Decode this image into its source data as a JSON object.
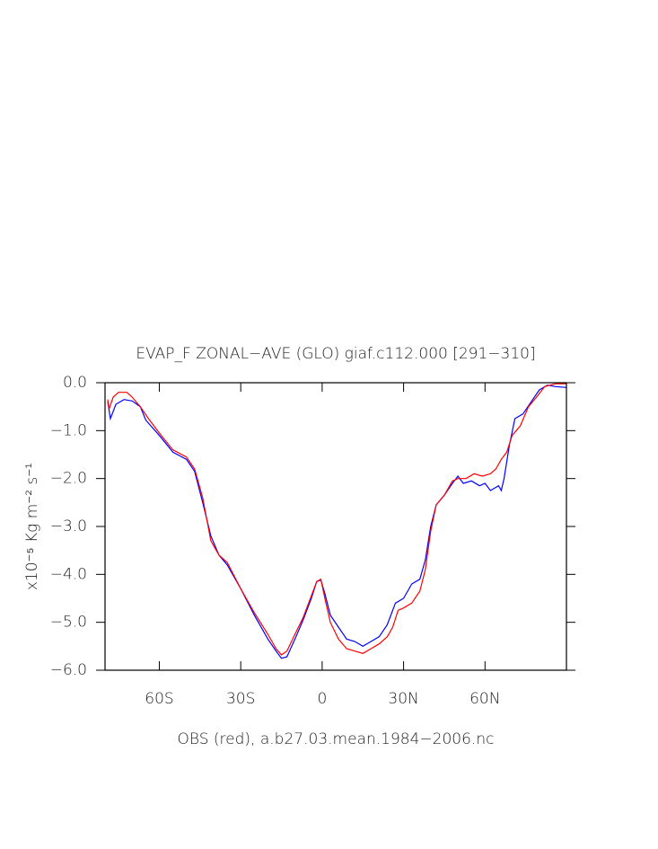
{
  "chart_data": {
    "type": "line",
    "title": "EVAP_F ZONAL−AVE (GLO) giaf.c112.000 [291−310]",
    "ylabel": "x10⁻⁵ Kg m⁻² s⁻¹",
    "footer": "OBS (red), a.b27.03.mean.1984−2006.nc",
    "xlim": [
      -80,
      90
    ],
    "xticks": [
      {
        "value": -60,
        "label": "60S"
      },
      {
        "value": -30,
        "label": "30S"
      },
      0,
      {
        "value": 30,
        "label": "30N"
      },
      {
        "value": 60,
        "label": "60N"
      }
    ],
    "ylim": [
      -6,
      0
    ],
    "yticks": [
      {
        "value": 0,
        "label": "0.0"
      },
      {
        "value": -1,
        "label": "−1.0"
      },
      {
        "value": -2,
        "label": "−2.0"
      },
      {
        "value": -3,
        "label": "−3.0"
      },
      {
        "value": -4,
        "label": "−4.0"
      },
      {
        "value": -5,
        "label": "−5.0"
      },
      {
        "value": -6,
        "label": "−6.0"
      }
    ],
    "series": [
      {
        "color": "#0000ff",
        "x": [
          -79,
          -78,
          -76,
          -73,
          -70,
          -67,
          -65,
          -60,
          -55,
          -50,
          -47,
          -44,
          -41,
          -38,
          -35,
          -30,
          -25,
          -20,
          -17,
          -15,
          -13,
          -10,
          -7,
          -4,
          -2,
          -0.5,
          1,
          3,
          6,
          9,
          12,
          15,
          18,
          21,
          24,
          27,
          30,
          33,
          36,
          38,
          40,
          42,
          45,
          48,
          50,
          52,
          55,
          58,
          60,
          62,
          65,
          66,
          67,
          69,
          71,
          74,
          77,
          80,
          83,
          86,
          90
        ],
        "values": [
          -0.4,
          -0.75,
          -0.45,
          -0.35,
          -0.38,
          -0.5,
          -0.78,
          -1.1,
          -1.45,
          -1.6,
          -1.85,
          -2.5,
          -3.2,
          -3.6,
          -3.8,
          -4.3,
          -4.85,
          -5.35,
          -5.6,
          -5.75,
          -5.72,
          -5.35,
          -4.95,
          -4.5,
          -4.15,
          -4.12,
          -4.4,
          -4.85,
          -5.1,
          -5.35,
          -5.4,
          -5.5,
          -5.4,
          -5.3,
          -5.05,
          -4.6,
          -4.5,
          -4.2,
          -4.1,
          -3.7,
          -3.0,
          -2.55,
          -2.35,
          -2.1,
          -1.95,
          -2.1,
          -2.05,
          -2.15,
          -2.1,
          -2.25,
          -2.15,
          -2.25,
          -2.0,
          -1.3,
          -0.75,
          -0.65,
          -0.4,
          -0.15,
          -0.05,
          -0.08,
          -0.1
        ]
      },
      {
        "color": "#ff0000",
        "x": [
          -79,
          -78.5,
          -77,
          -75,
          -72,
          -70,
          -67,
          -64,
          -60,
          -55,
          -50,
          -47,
          -44,
          -41,
          -38,
          -35,
          -30,
          -25,
          -20,
          -17,
          -15,
          -13,
          -10,
          -7,
          -4,
          -2,
          -0.5,
          1,
          3,
          6,
          9,
          12,
          15,
          18,
          21,
          24,
          26,
          28,
          30,
          33,
          36,
          38,
          40,
          42,
          45,
          48,
          50,
          53,
          56,
          59,
          62,
          64,
          66,
          68,
          70,
          73,
          76,
          79,
          82,
          86,
          90
        ],
        "values": [
          -0.35,
          -0.55,
          -0.3,
          -0.2,
          -0.2,
          -0.3,
          -0.5,
          -0.75,
          -1.05,
          -1.4,
          -1.55,
          -1.8,
          -2.4,
          -3.3,
          -3.6,
          -3.75,
          -4.3,
          -4.8,
          -5.25,
          -5.55,
          -5.68,
          -5.6,
          -5.25,
          -4.9,
          -4.45,
          -4.15,
          -4.1,
          -4.5,
          -5.0,
          -5.35,
          -5.55,
          -5.6,
          -5.65,
          -5.55,
          -5.45,
          -5.3,
          -5.1,
          -4.75,
          -4.7,
          -4.6,
          -4.35,
          -3.9,
          -3.1,
          -2.55,
          -2.35,
          -2.05,
          -2.0,
          -2.0,
          -1.9,
          -1.95,
          -1.9,
          -1.8,
          -1.6,
          -1.45,
          -1.1,
          -0.9,
          -0.5,
          -0.3,
          -0.08,
          -0.02,
          -0.02
        ]
      }
    ]
  }
}
